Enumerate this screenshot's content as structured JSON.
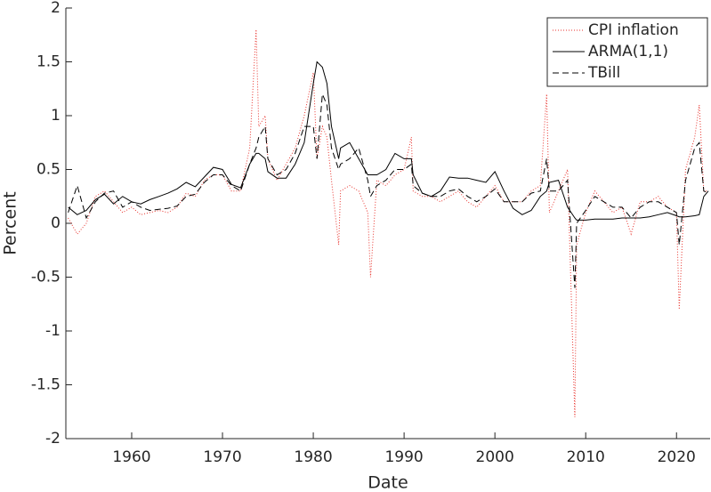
{
  "chart_data": {
    "type": "line",
    "xlabel": "Date",
    "ylabel": "Percent",
    "x": [
      1953,
      1954,
      1955,
      1956,
      1957,
      1958,
      1959,
      1960,
      1961,
      1962,
      1963,
      1964,
      1965,
      1966,
      1967,
      1968,
      1969,
      1970,
      1971,
      1972,
      1973,
      1973.7,
      1974,
      1974.7,
      1975,
      1976,
      1977,
      1978,
      1979,
      1980,
      1980.4,
      1981,
      1981.5,
      1982,
      1982.8,
      1983,
      1984,
      1985,
      1986,
      1986.3,
      1987,
      1988,
      1989,
      1990,
      1990.8,
      1991,
      1992,
      1993,
      1994,
      1995,
      1996,
      1997,
      1998,
      1999,
      2000,
      2001,
      2002,
      2003,
      2004,
      2005,
      2005.7,
      2006,
      2007,
      2008,
      2008.8,
      2009,
      2010,
      2011,
      2012,
      2013,
      2014,
      2015,
      2016,
      2017,
      2018,
      2019,
      2020,
      2020.3,
      2021,
      2022,
      2022.5,
      2023,
      2023.5
    ],
    "series": [
      {
        "name": "CPI inflation",
        "color": "#e8322c",
        "style": "dotted",
        "values": [
          0.05,
          -0.1,
          0.0,
          0.25,
          0.3,
          0.2,
          0.1,
          0.15,
          0.08,
          0.1,
          0.12,
          0.1,
          0.15,
          0.28,
          0.25,
          0.4,
          0.45,
          0.45,
          0.3,
          0.3,
          0.7,
          1.8,
          0.9,
          1.0,
          0.6,
          0.4,
          0.55,
          0.7,
          1.0,
          1.4,
          0.6,
          0.9,
          0.8,
          0.4,
          -0.2,
          0.3,
          0.35,
          0.3,
          0.1,
          -0.5,
          0.4,
          0.35,
          0.45,
          0.5,
          0.8,
          0.3,
          0.25,
          0.25,
          0.2,
          0.25,
          0.3,
          0.2,
          0.15,
          0.25,
          0.35,
          0.2,
          0.2,
          0.2,
          0.3,
          0.35,
          1.2,
          0.1,
          0.3,
          0.5,
          -1.8,
          -0.2,
          0.1,
          0.3,
          0.2,
          0.1,
          0.15,
          -0.1,
          0.2,
          0.2,
          0.25,
          0.15,
          0.1,
          -0.8,
          0.5,
          0.8,
          1.1,
          0.3,
          0.3
        ]
      },
      {
        "name": "ARMA(1,1)",
        "color": "#000000",
        "style": "solid",
        "values": [
          0.15,
          0.08,
          0.12,
          0.22,
          0.27,
          0.18,
          0.25,
          0.2,
          0.18,
          0.22,
          0.25,
          0.28,
          0.32,
          0.38,
          0.34,
          0.43,
          0.52,
          0.5,
          0.36,
          0.33,
          0.55,
          0.65,
          0.65,
          0.6,
          0.48,
          0.42,
          0.42,
          0.55,
          0.75,
          1.3,
          1.5,
          1.45,
          1.3,
          0.9,
          0.6,
          0.7,
          0.75,
          0.6,
          0.45,
          0.45,
          0.45,
          0.5,
          0.65,
          0.6,
          0.6,
          0.45,
          0.28,
          0.25,
          0.3,
          0.43,
          0.42,
          0.42,
          0.4,
          0.38,
          0.48,
          0.3,
          0.14,
          0.08,
          0.12,
          0.25,
          0.3,
          0.38,
          0.4,
          0.15,
          0.05,
          0.03,
          0.03,
          0.04,
          0.04,
          0.04,
          0.05,
          0.05,
          0.05,
          0.06,
          0.08,
          0.1,
          0.07,
          0.06,
          0.06,
          0.07,
          0.08,
          0.25,
          0.3
        ]
      },
      {
        "name": "TBill",
        "color": "#000000",
        "style": "dashed",
        "values": [
          0.1,
          0.35,
          0.05,
          0.2,
          0.28,
          0.3,
          0.15,
          0.2,
          0.15,
          0.12,
          0.13,
          0.14,
          0.16,
          0.25,
          0.27,
          0.38,
          0.45,
          0.45,
          0.35,
          0.3,
          0.55,
          0.7,
          0.8,
          0.9,
          0.6,
          0.45,
          0.5,
          0.65,
          0.9,
          0.9,
          0.6,
          1.2,
          1.1,
          0.7,
          0.5,
          0.55,
          0.6,
          0.7,
          0.4,
          0.25,
          0.35,
          0.4,
          0.5,
          0.5,
          0.55,
          0.35,
          0.28,
          0.25,
          0.25,
          0.3,
          0.32,
          0.25,
          0.2,
          0.25,
          0.32,
          0.2,
          0.2,
          0.2,
          0.28,
          0.3,
          0.6,
          0.3,
          0.3,
          0.4,
          -0.6,
          0.0,
          0.12,
          0.25,
          0.2,
          0.15,
          0.15,
          0.05,
          0.15,
          0.2,
          0.2,
          0.15,
          0.1,
          -0.2,
          0.4,
          0.7,
          0.75,
          0.3,
          0.28
        ]
      }
    ],
    "xlim": [
      1952.75,
      2023.7
    ],
    "xticks": [
      1960,
      1970,
      1980,
      1990,
      2000,
      2010,
      2020
    ],
    "ylim": [
      -2,
      2
    ],
    "yticks": [
      -2,
      -1.5,
      -1,
      -0.5,
      0,
      0.5,
      1,
      1.5,
      2
    ],
    "legend": "upper right"
  }
}
